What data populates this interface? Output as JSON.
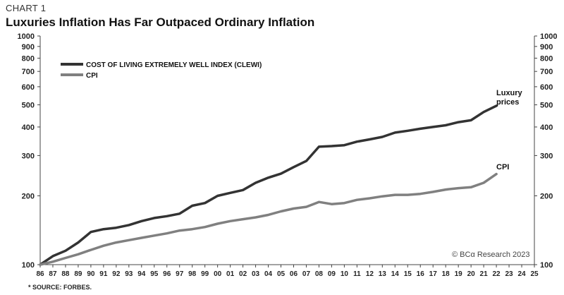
{
  "header": {
    "chart_number": "CHART 1",
    "title": "Luxuries Inflation Has Far Outpaced Ordinary Inflation"
  },
  "footnote": "* SOURCE: FORBES.",
  "watermark": "© BCα Research 2023",
  "colors": {
    "clewi": "#333333",
    "cpi": "#808080",
    "axis": "#444444"
  },
  "chart_data": {
    "type": "line",
    "title": "Luxuries Inflation Has Far Outpaced Ordinary Inflation",
    "xlabel": "",
    "ylabel": "",
    "yscale": "log",
    "ylim": [
      100,
      1000
    ],
    "xlim": [
      1986,
      2025
    ],
    "grid": false,
    "legend_position": "top-left",
    "y_ticks": [
      100,
      200,
      300,
      400,
      500,
      600,
      700,
      800,
      900,
      1000
    ],
    "x_tick_labels": [
      "86",
      "87",
      "88",
      "89",
      "90",
      "91",
      "92",
      "93",
      "94",
      "95",
      "96",
      "97",
      "98",
      "99",
      "00",
      "01",
      "02",
      "03",
      "04",
      "05",
      "06",
      "07",
      "08",
      "09",
      "10",
      "11",
      "12",
      "13",
      "14",
      "15",
      "16",
      "17",
      "18",
      "19",
      "20",
      "21",
      "22",
      "23",
      "24",
      "25"
    ],
    "x": [
      1986,
      1987,
      1988,
      1989,
      1990,
      1991,
      1992,
      1993,
      1994,
      1995,
      1996,
      1997,
      1998,
      1999,
      2000,
      2001,
      2002,
      2003,
      2004,
      2005,
      2006,
      2007,
      2008,
      2009,
      2010,
      2011,
      2012,
      2013,
      2014,
      2015,
      2016,
      2017,
      2018,
      2019,
      2020,
      2021,
      2022
    ],
    "series": [
      {
        "name": "COST OF LIVING EXTREMELY WELL INDEX (CLEWI)",
        "end_label": "Luxury prices",
        "values": [
          100,
          109,
          115,
          125,
          139,
          143,
          145,
          149,
          155,
          160,
          163,
          167,
          181,
          186,
          200,
          206,
          212,
          228,
          240,
          250,
          267,
          284,
          328,
          330,
          333,
          345,
          353,
          362,
          378,
          385,
          393,
          400,
          407,
          420,
          428,
          465,
          495
        ]
      },
      {
        "name": "CPI",
        "end_label": "CPI",
        "values": [
          100,
          103,
          107,
          111,
          116,
          121,
          125,
          128,
          131,
          134,
          137,
          141,
          143,
          146,
          151,
          155,
          158,
          161,
          165,
          171,
          176,
          179,
          188,
          184,
          186,
          192,
          195,
          199,
          202,
          202,
          204,
          208,
          213,
          216,
          218,
          228,
          249
        ]
      }
    ],
    "annotations": [
      "Luxury",
      "prices",
      "CPI"
    ]
  }
}
